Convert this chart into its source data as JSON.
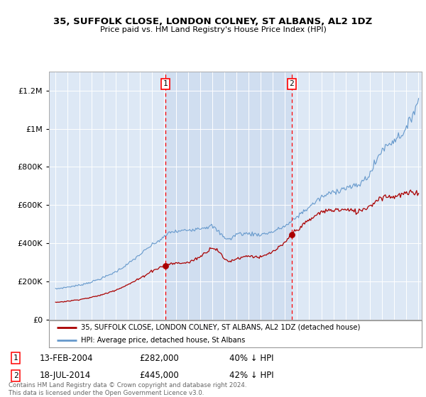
{
  "title": "35, SUFFOLK CLOSE, LONDON COLNEY, ST ALBANS, AL2 1DZ",
  "subtitle": "Price paid vs. HM Land Registry's House Price Index (HPI)",
  "background_color": "#dde8f5",
  "shade_color": "#d0e0f0",
  "hpi_color": "#6699cc",
  "price_color": "#aa0000",
  "legend_entries": [
    "35, SUFFOLK CLOSE, LONDON COLNEY, ST ALBANS, AL2 1DZ (detached house)",
    "HPI: Average price, detached house, St Albans"
  ],
  "transaction1": {
    "label": "1",
    "date": "13-FEB-2004",
    "price": "£282,000",
    "hpi": "40% ↓ HPI",
    "x": 2004.12
  },
  "transaction2": {
    "label": "2",
    "date": "18-JUL-2014",
    "price": "£445,000",
    "hpi": "42% ↓ HPI",
    "x": 2014.55
  },
  "footnote": "Contains HM Land Registry data © Crown copyright and database right 2024.\nThis data is licensed under the Open Government Licence v3.0.",
  "xlim_start": 1994.5,
  "xlim_end": 2025.3,
  "ylim": [
    0,
    1300000
  ],
  "yticks": [
    0,
    200000,
    400000,
    600000,
    800000,
    1000000,
    1200000
  ],
  "ytick_labels": [
    "£0",
    "£200K",
    "£400K",
    "£600K",
    "£800K",
    "£1M",
    "£1.2M"
  ],
  "t1_price_y": 282000,
  "t2_price_y": 445000
}
